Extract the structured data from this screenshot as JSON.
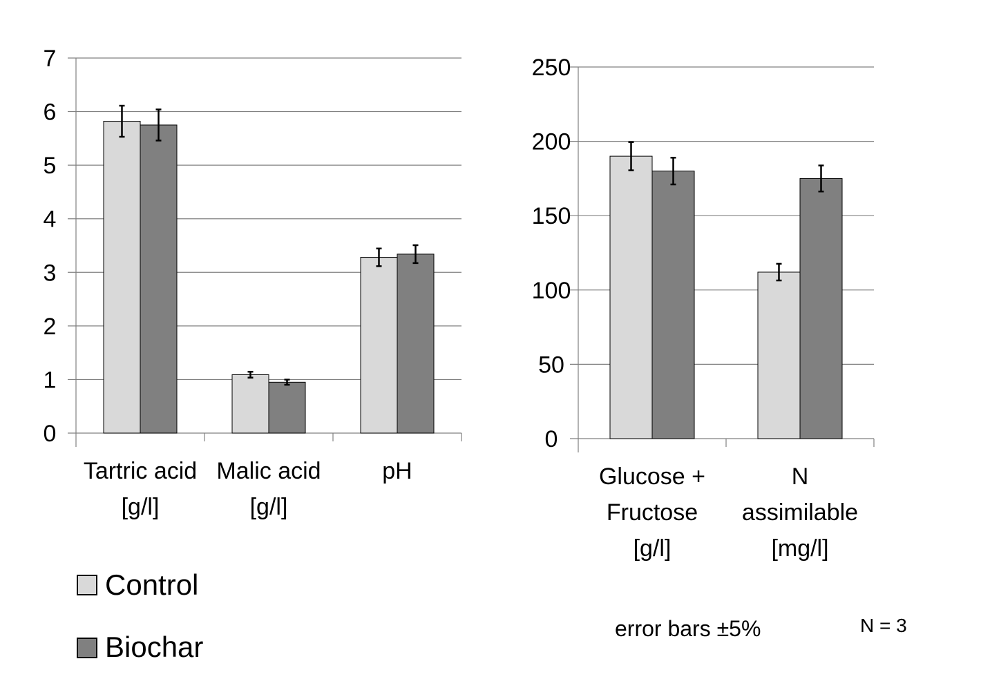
{
  "colors": {
    "control": "#d9d9d9",
    "biochar": "#808080",
    "grid": "#808080",
    "axis": "#808080",
    "errorbar": "#000000"
  },
  "chart_data": [
    {
      "type": "bar",
      "categories": [
        [
          "Tartric acid",
          "[g/l]"
        ],
        [
          "Malic acid",
          "[g/l]"
        ],
        [
          "pH"
        ]
      ],
      "series": [
        {
          "name": "Control",
          "values": [
            5.82,
            1.09,
            3.28
          ],
          "error": [
            0.29,
            0.055,
            0.165
          ]
        },
        {
          "name": "Biochar",
          "values": [
            5.75,
            0.95,
            3.34
          ],
          "error": [
            0.29,
            0.048,
            0.167
          ]
        }
      ],
      "ylim": [
        0,
        7
      ],
      "yticks": [
        "0",
        "1",
        "2",
        "3",
        "4",
        "5",
        "6",
        "7"
      ],
      "grid": true
    },
    {
      "type": "bar",
      "categories": [
        [
          "Glucose +",
          "Fructose",
          "[g/l]"
        ],
        [
          "N",
          "assimilable",
          "[mg/l]"
        ]
      ],
      "series": [
        {
          "name": "Control",
          "values": [
            190,
            112
          ],
          "error": [
            9.5,
            5.6
          ]
        },
        {
          "name": "Biochar",
          "values": [
            180,
            175
          ],
          "error": [
            9,
            8.75
          ]
        }
      ],
      "ylim": [
        0,
        250
      ],
      "yticks": [
        "0",
        "50",
        "100",
        "150",
        "200",
        "250"
      ],
      "grid": true
    }
  ],
  "legend": {
    "items": [
      "Control",
      "Biochar"
    ],
    "placement": "bottom-left"
  },
  "notes": {
    "error_bars": "error bars ±5%",
    "n": "N = 3"
  }
}
